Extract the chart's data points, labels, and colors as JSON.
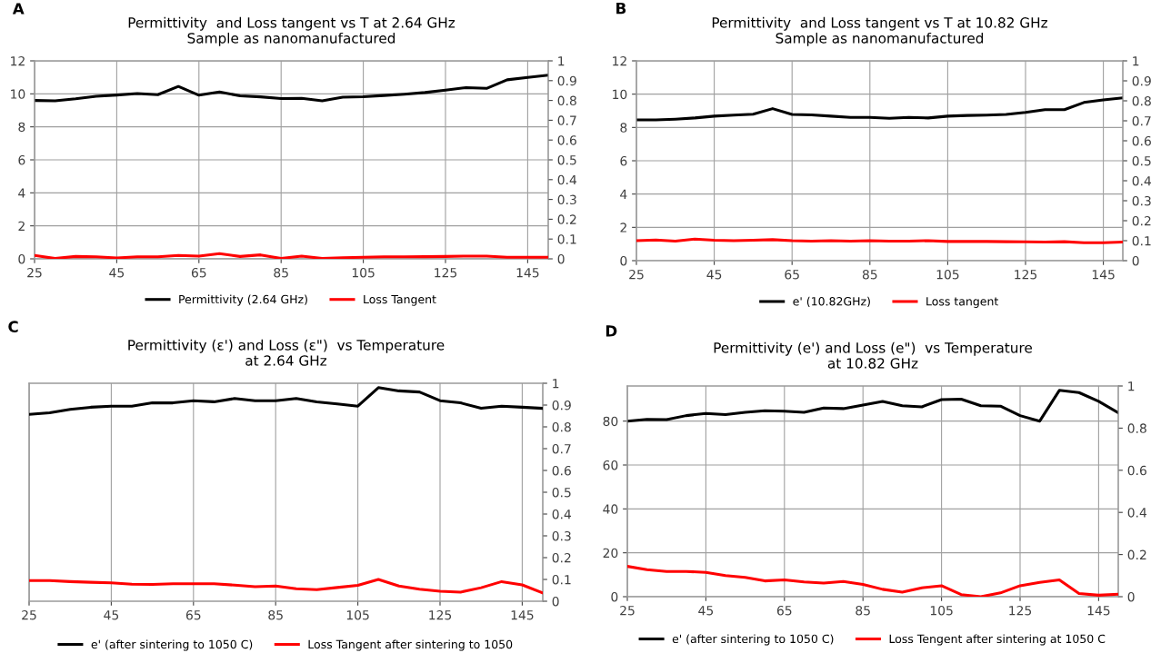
{
  "chart_data": [
    {
      "type": "line",
      "title": "Permittivity  and Loss tangent vs T at 2.64 GHz\nSample as nanomanufactured",
      "annotations": [
        "A"
      ],
      "x": [
        25,
        30,
        35,
        40,
        45,
        50,
        55,
        60,
        65,
        70,
        75,
        80,
        85,
        90,
        95,
        100,
        105,
        110,
        115,
        120,
        125,
        130,
        135,
        140,
        145,
        150
      ],
      "xlim": [
        25,
        150
      ],
      "xticks": [
        25,
        45,
        65,
        85,
        105,
        125,
        145
      ],
      "ylim": [
        0,
        12
      ],
      "yticks": [
        0,
        2,
        4,
        6,
        8,
        10,
        12
      ],
      "y2lim": [
        0,
        1
      ],
      "y2ticks": [
        0,
        0.1,
        0.2,
        0.3,
        0.4,
        0.5,
        0.6,
        0.7,
        0.8,
        0.9,
        1
      ],
      "grid": true,
      "legend": "bottom",
      "marker": "none",
      "line_style": "solid",
      "series": [
        {
          "name": "Permittivity (2.64 GHz)",
          "color": "#000000",
          "values": [
            9.6,
            9.58,
            9.7,
            9.85,
            9.93,
            10.02,
            9.95,
            10.45,
            9.92,
            10.12,
            9.88,
            9.82,
            9.72,
            9.73,
            9.58,
            9.8,
            9.83,
            9.9,
            9.98,
            10.08,
            10.22,
            10.38,
            10.33,
            10.85,
            11.0,
            11.13
          ]
        },
        {
          "name": "Loss Tangent",
          "color": "#ff0000",
          "axis": "y2",
          "values": [
            0.017,
            0.002,
            0.012,
            0.01,
            0.005,
            0.01,
            0.01,
            0.017,
            0.014,
            0.026,
            0.012,
            0.02,
            0.002,
            0.014,
            0.002,
            0.006,
            0.008,
            0.01,
            0.01,
            0.011,
            0.012,
            0.014,
            0.014,
            0.008,
            0.008,
            0.008
          ]
        }
      ]
    },
    {
      "type": "line",
      "title": "Permittivity  and Loss tangent vs T at 10.82 GHz\nSample as nanomanufactured",
      "annotations": [
        "B"
      ],
      "x": [
        25,
        30,
        35,
        40,
        45,
        50,
        55,
        60,
        65,
        70,
        75,
        80,
        85,
        90,
        95,
        100,
        105,
        110,
        115,
        120,
        125,
        130,
        135,
        140,
        145,
        150
      ],
      "xlim": [
        25,
        150
      ],
      "xticks": [
        25,
        45,
        65,
        85,
        105,
        125,
        145
      ],
      "ylim": [
        0,
        12
      ],
      "yticks": [
        0,
        2,
        4,
        6,
        8,
        10,
        12
      ],
      "y2lim": [
        0,
        1
      ],
      "y2ticks": [
        0,
        0.1,
        0.2,
        0.3,
        0.4,
        0.5,
        0.6,
        0.7,
        0.8,
        0.9,
        1
      ],
      "grid": true,
      "legend": "bottom",
      "marker": "none",
      "line_style": "solid",
      "series": [
        {
          "name": "e' (10.82GHz)",
          "color": "#000000",
          "values": [
            8.45,
            8.45,
            8.5,
            8.57,
            8.68,
            8.74,
            8.8,
            9.13,
            8.78,
            8.75,
            8.68,
            8.6,
            8.6,
            8.55,
            8.6,
            8.57,
            8.68,
            8.72,
            8.74,
            8.78,
            8.9,
            9.07,
            9.07,
            9.5,
            9.65,
            9.78
          ]
        },
        {
          "name": "Loss tangent",
          "color": "#ff0000",
          "axis": "y2",
          "values": [
            0.1,
            0.103,
            0.098,
            0.108,
            0.102,
            0.1,
            0.102,
            0.105,
            0.1,
            0.098,
            0.1,
            0.098,
            0.1,
            0.098,
            0.098,
            0.1,
            0.096,
            0.096,
            0.096,
            0.095,
            0.094,
            0.093,
            0.095,
            0.09,
            0.09,
            0.093
          ]
        }
      ]
    },
    {
      "type": "line",
      "title": "Permittivity (ε') and Loss (ε\")  vs Temperature\nat 2.64 GHz",
      "annotations": [
        "C"
      ],
      "x": [
        25,
        30,
        35,
        40,
        45,
        50,
        55,
        60,
        65,
        70,
        75,
        80,
        85,
        90,
        95,
        100,
        105,
        110,
        115,
        120,
        125,
        130,
        135,
        140,
        145,
        150
      ],
      "xlim": [
        25,
        150
      ],
      "xticks": [
        25,
        45,
        65,
        85,
        105,
        125,
        145
      ],
      "y2lim": [
        0,
        1
      ],
      "y2ticks": [
        0,
        0.1,
        0.2,
        0.3,
        0.4,
        0.5,
        0.6,
        0.7,
        0.8,
        0.9,
        1
      ],
      "grid": "x",
      "legend": "bottom",
      "marker": "none",
      "line_style": "solid",
      "series": [
        {
          "name": "e' (after sintering to 1050 C)",
          "color": "#000000",
          "axis": "y2",
          "values": [
            0.857,
            0.865,
            0.88,
            0.89,
            0.895,
            0.895,
            0.91,
            0.91,
            0.92,
            0.915,
            0.93,
            0.92,
            0.92,
            0.93,
            0.915,
            0.905,
            0.895,
            0.98,
            0.965,
            0.96,
            0.92,
            0.91,
            0.885,
            0.895,
            0.89,
            0.885
          ]
        },
        {
          "name": "Loss Tangent after sintering to 1050",
          "color": "#ff0000",
          "axis": "y2",
          "values": [
            0.095,
            0.095,
            0.09,
            0.087,
            0.084,
            0.078,
            0.077,
            0.08,
            0.08,
            0.08,
            0.074,
            0.067,
            0.07,
            0.057,
            0.053,
            0.063,
            0.073,
            0.1,
            0.07,
            0.055,
            0.046,
            0.042,
            0.062,
            0.09,
            0.075,
            0.038
          ]
        }
      ]
    },
    {
      "type": "line",
      "title": "Permittivity (e') and Loss (e\")  vs Temperature\nat 10.82 GHz",
      "annotations": [
        "D"
      ],
      "x": [
        25,
        30,
        35,
        40,
        45,
        50,
        55,
        60,
        65,
        70,
        75,
        80,
        85,
        90,
        95,
        100,
        105,
        110,
        115,
        120,
        125,
        130,
        135,
        140,
        145,
        150
      ],
      "xlim": [
        25,
        150
      ],
      "xticks": [
        25,
        45,
        65,
        85,
        105,
        125,
        145
      ],
      "ylim": [
        0,
        96
      ],
      "yticks": [
        0,
        20,
        40,
        60,
        80
      ],
      "y2lim": [
        0,
        1
      ],
      "y2ticks": [
        0,
        0.2,
        0.4,
        0.6,
        0.8,
        1
      ],
      "grid": true,
      "legend": "bottom",
      "marker": "none",
      "line_style": "solid",
      "series": [
        {
          "name": "e' (after sintering to 1050 C)",
          "color": "#000000",
          "values": [
            80,
            80.8,
            80.7,
            82.5,
            83.5,
            83,
            84,
            84.7,
            84.5,
            84,
            86,
            85.7,
            87.3,
            89,
            87,
            86.5,
            89.8,
            90,
            87,
            86.8,
            82.5,
            80,
            94,
            93,
            89,
            83.8
          ]
        },
        {
          "name": "Loss Tengent after sintering at 1050 C",
          "color": "#ff0000",
          "axis": "y2",
          "values": [
            0.144,
            0.128,
            0.12,
            0.12,
            0.115,
            0.1,
            0.092,
            0.075,
            0.08,
            0.07,
            0.065,
            0.072,
            0.058,
            0.035,
            0.022,
            0.042,
            0.052,
            0.01,
            0.0,
            0.018,
            0.052,
            0.068,
            0.08,
            0.015,
            0.007,
            0.012
          ]
        }
      ]
    }
  ]
}
